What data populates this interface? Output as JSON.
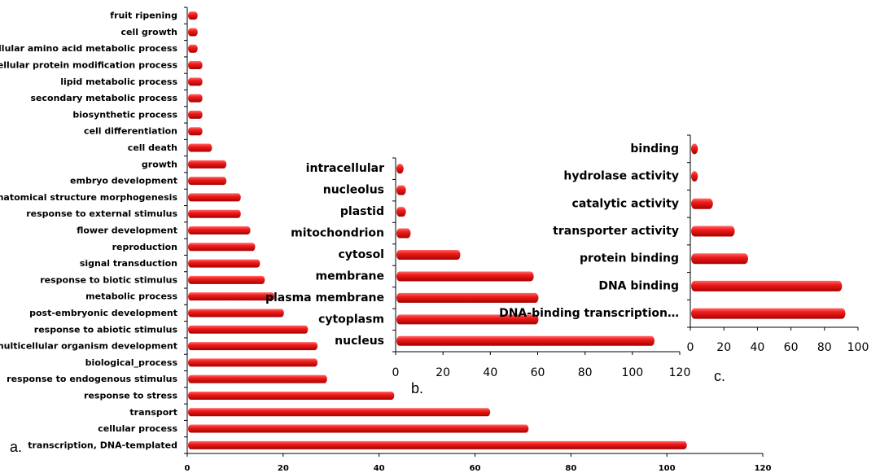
{
  "chart_data": [
    {
      "panel": "a.",
      "type": "bar",
      "orientation": "horizontal",
      "categories": [
        "fruit ripening",
        "cell growth",
        "cellular amino acid metabolic process",
        "cellular protein modification process",
        "lipid metabolic process",
        "secondary metabolic process",
        "biosynthetic process",
        "cell differentiation",
        "cell death",
        "growth",
        "embryo development",
        "anatomical structure morphogenesis",
        "response to external stimulus",
        "flower development",
        "reproduction",
        "signal transduction",
        "response to biotic stimulus",
        "metabolic process",
        "post-embryonic development",
        "response to abiotic stimulus",
        "multicellular organism development",
        "biological_process",
        "response to endogenous stimulus",
        "response to stress",
        "transport",
        "cellular process",
        "transcription, DNA-templated"
      ],
      "values": [
        2,
        2,
        2,
        3,
        3,
        3,
        3,
        3,
        5,
        8,
        8,
        11,
        11,
        13,
        14,
        15,
        16,
        18,
        20,
        25,
        27,
        27,
        29,
        43,
        63,
        71,
        104
      ],
      "xticks": [
        0,
        20,
        40,
        60,
        80,
        100,
        120
      ],
      "xlim": [
        0,
        120
      ],
      "bar_color": "#e41414",
      "grid": false
    },
    {
      "panel": "b.",
      "type": "bar",
      "orientation": "horizontal",
      "categories": [
        "intracellular",
        "nucleolus",
        "plastid",
        "mitochondrion",
        "cytosol",
        "membrane",
        "plasma membrane",
        "cytoplasm",
        "nucleus"
      ],
      "values": [
        3,
        4,
        4,
        6,
        27,
        58,
        60,
        60,
        109
      ],
      "xticks": [
        0,
        20,
        40,
        60,
        80,
        100,
        120
      ],
      "xlim": [
        0,
        120
      ],
      "bar_color": "#e41414",
      "grid": false
    },
    {
      "panel": "c.",
      "type": "bar",
      "orientation": "horizontal",
      "categories": [
        "binding",
        "hydrolase activity",
        "catalytic activity",
        "transporter activity",
        "protein binding",
        "DNA binding",
        "DNA-binding transcription…"
      ],
      "values": [
        4,
        4,
        13,
        26,
        34,
        90,
        92
      ],
      "xticks": [
        0,
        20,
        40,
        60,
        80,
        100
      ],
      "xlim": [
        0,
        100
      ],
      "bar_color": "#e41414",
      "grid": false
    }
  ]
}
